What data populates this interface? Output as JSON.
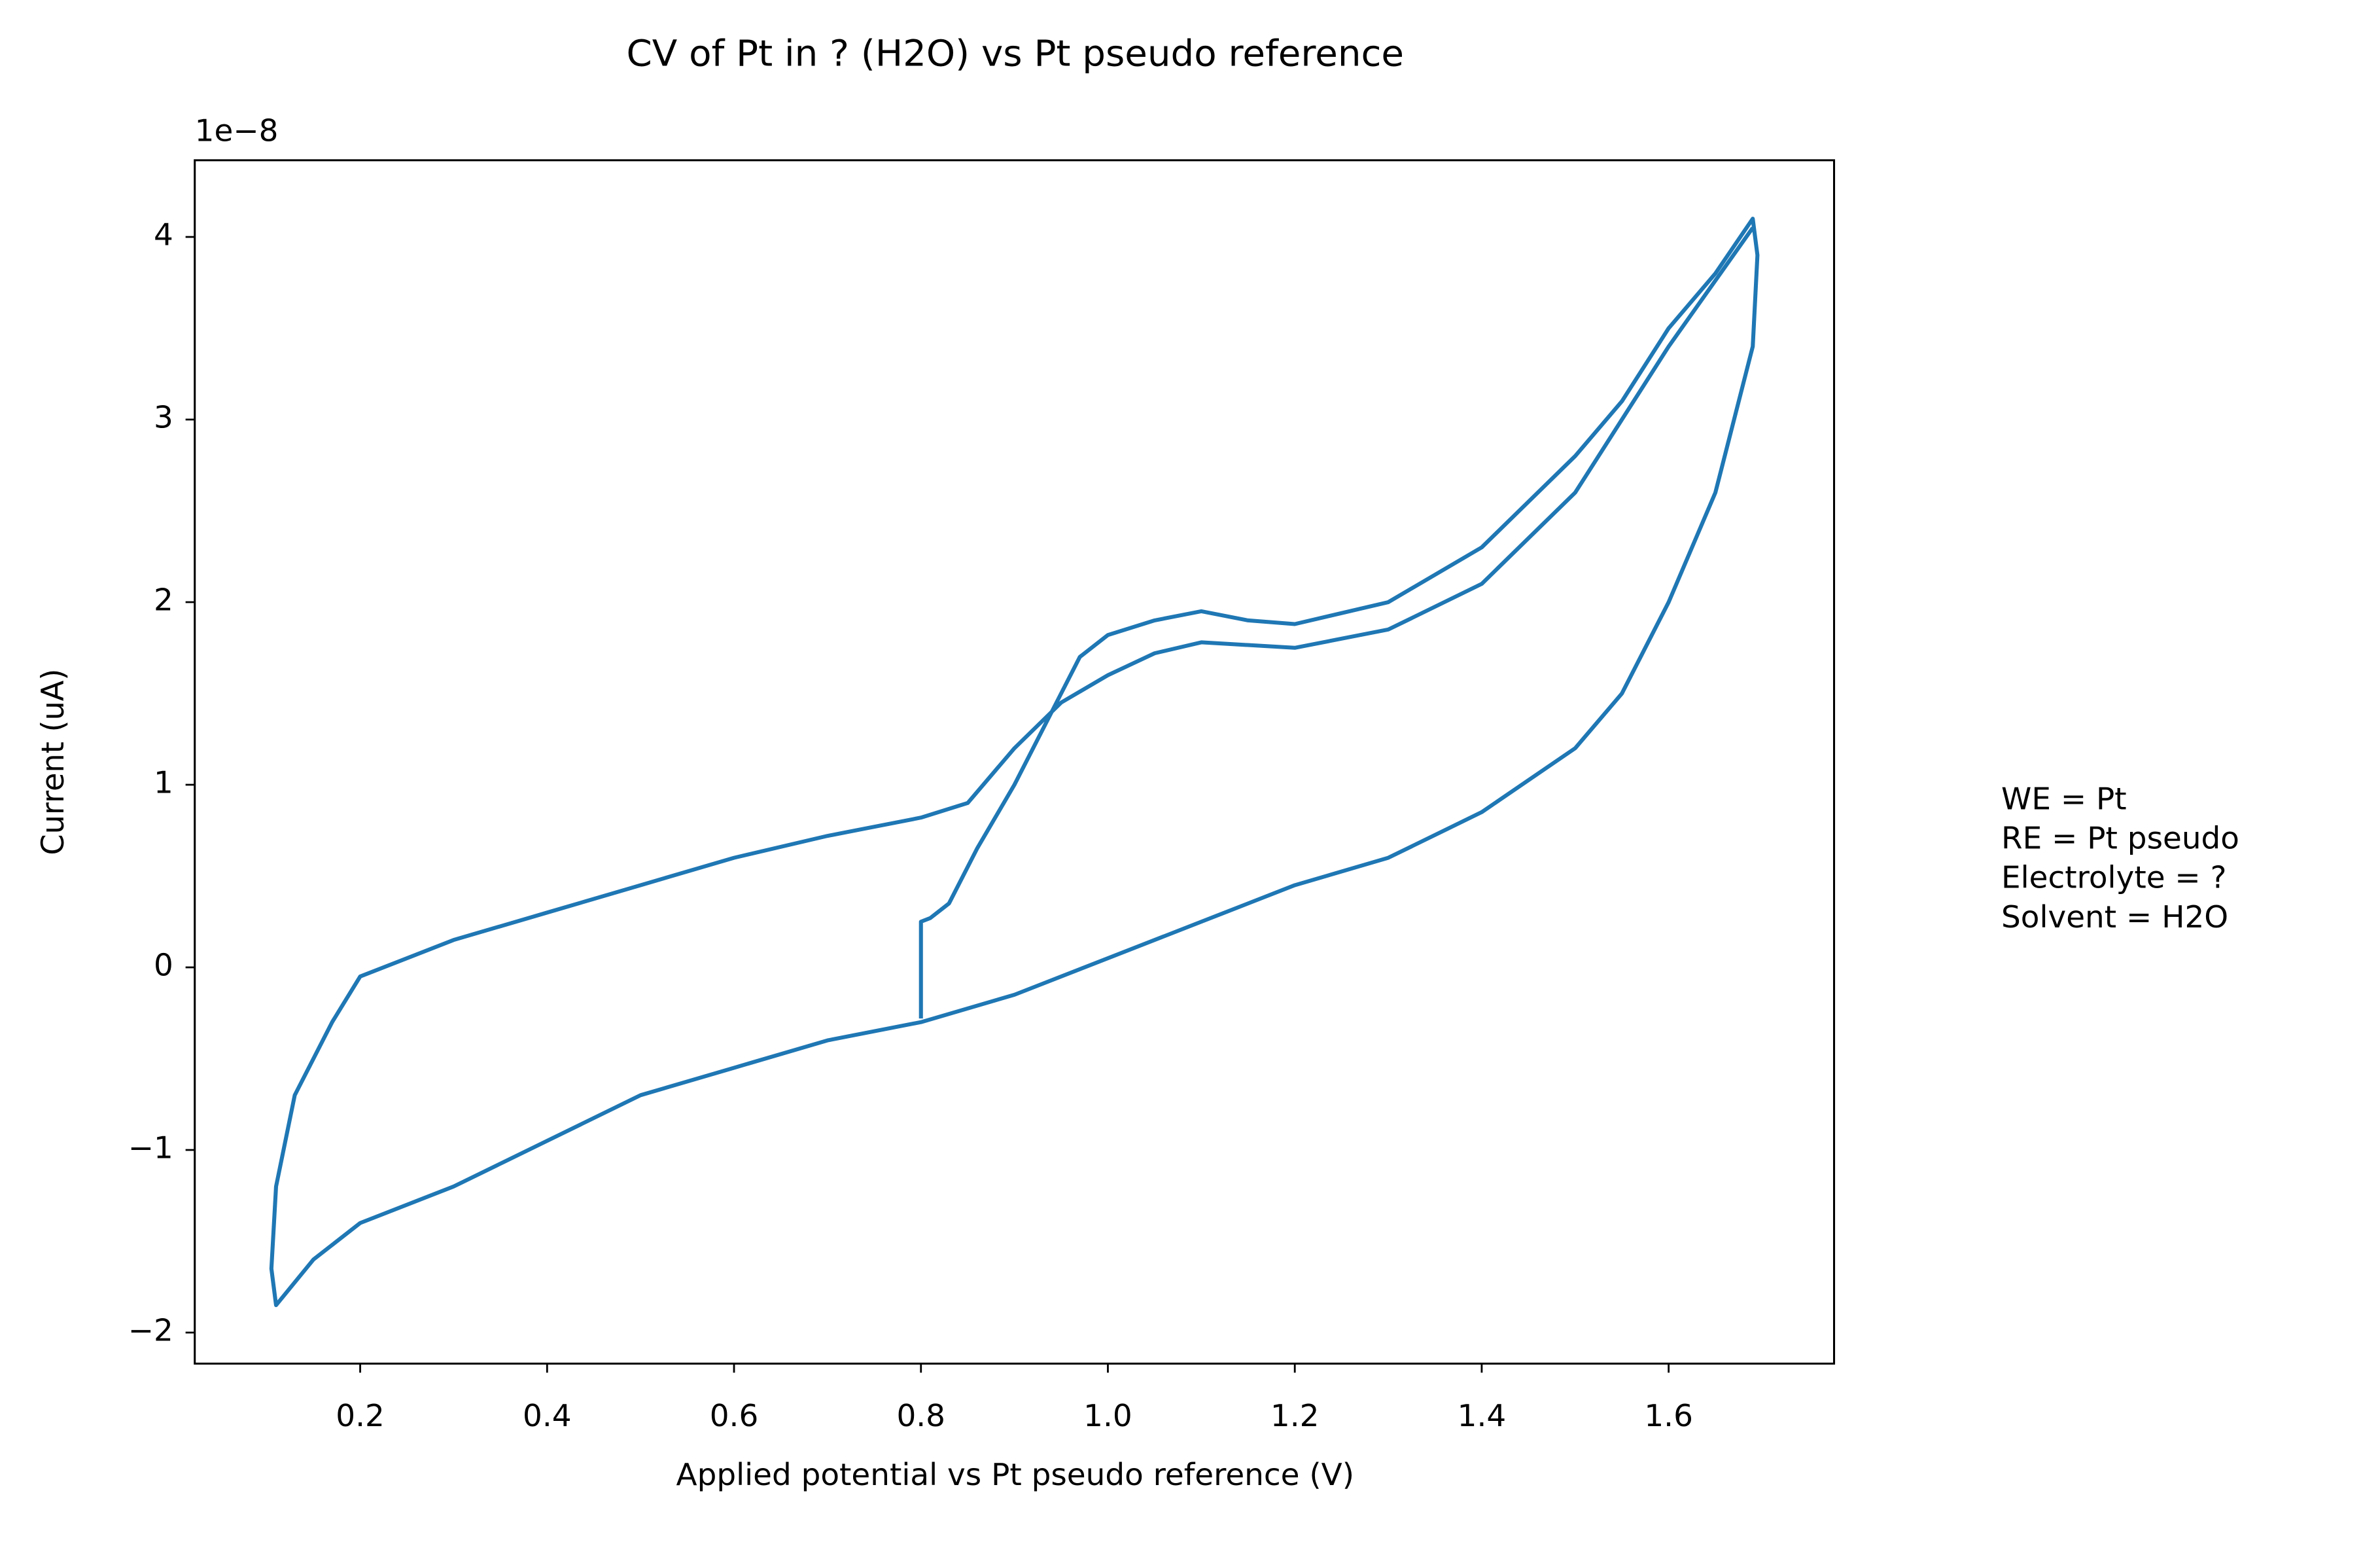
{
  "chart_data": {
    "type": "line",
    "title": "CV of Pt in ? (H2O) vs Pt pseudo reference",
    "x_label": "Applied potential vs Pt pseudo reference (V)",
    "y_label": "Current (uA)",
    "y_offset_label": "1e−8",
    "annotation": [
      "WE = Pt",
      "RE = Pt pseudo",
      "Electrolyte = ?",
      "Solvent = H2O"
    ],
    "xlim": [
      0.023,
      1.777
    ],
    "ylim": [
      -2.17,
      4.42
    ],
    "xticks": [
      0.2,
      0.4,
      0.6,
      0.8,
      {
        "value": 1,
        "label": "1.0"
      },
      1.2,
      1.4,
      1.6
    ],
    "yticks": [
      {
        "value": -2,
        "label": "−2"
      },
      {
        "value": -1,
        "label": "−1"
      },
      0,
      1,
      2,
      3,
      4
    ],
    "series": [
      {
        "name": "CV",
        "color": "#1f77b4",
        "x": [
          0.8,
          0.8,
          0.81,
          0.83,
          0.86,
          0.9,
          0.93,
          0.97,
          1.0,
          1.05,
          1.1,
          1.15,
          1.2,
          1.3,
          1.4,
          1.5,
          1.55,
          1.6,
          1.65,
          1.69,
          1.695,
          1.69,
          1.65,
          1.6,
          1.55,
          1.5,
          1.4,
          1.3,
          1.2,
          1.1,
          1.0,
          0.9,
          0.8,
          0.7,
          0.6,
          0.5,
          0.4,
          0.3,
          0.2,
          0.15,
          0.11,
          0.105,
          0.11,
          0.13,
          0.17,
          0.2,
          0.3,
          0.4,
          0.5,
          0.6,
          0.7,
          0.8,
          0.85,
          0.9,
          0.95,
          1.0,
          1.05,
          1.1,
          1.2,
          1.3,
          1.4,
          1.5,
          1.6,
          1.69
        ],
        "values": [
          -0.28,
          0.25,
          0.27,
          0.35,
          0.65,
          1.0,
          1.3,
          1.7,
          1.82,
          1.9,
          1.95,
          1.9,
          1.88,
          2.0,
          2.3,
          2.8,
          3.1,
          3.5,
          3.8,
          4.1,
          3.9,
          3.4,
          2.6,
          2.0,
          1.5,
          1.2,
          0.85,
          0.6,
          0.45,
          0.25,
          0.05,
          -0.15,
          -0.3,
          -0.4,
          -0.55,
          -0.7,
          -0.95,
          -1.2,
          -1.4,
          -1.6,
          -1.85,
          -1.65,
          -1.2,
          -0.7,
          -0.3,
          -0.05,
          0.15,
          0.3,
          0.45,
          0.6,
          0.72,
          0.82,
          0.9,
          1.2,
          1.45,
          1.6,
          1.72,
          1.78,
          1.75,
          1.85,
          2.1,
          2.6,
          3.4,
          4.05
        ]
      }
    ]
  }
}
